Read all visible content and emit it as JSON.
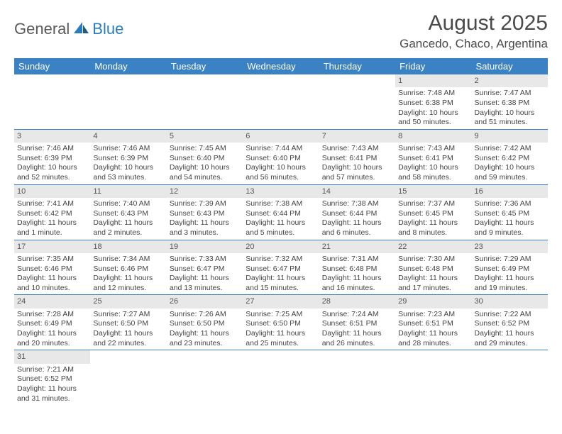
{
  "logo": {
    "part1": "General",
    "part2": "Blue"
  },
  "title": "August 2025",
  "location": "Gancedo, Chaco, Argentina",
  "headers": [
    "Sunday",
    "Monday",
    "Tuesday",
    "Wednesday",
    "Thursday",
    "Friday",
    "Saturday"
  ],
  "colors": {
    "headerBg": "#3b82c4",
    "dayNumBg": "#e8e8e8",
    "border": "#3b82c4",
    "logoBlue": "#2b7bbf"
  },
  "weeks": [
    [
      null,
      null,
      null,
      null,
      null,
      {
        "n": "1",
        "sr": "7:48 AM",
        "ss": "6:38 PM",
        "dl": "10 hours and 50 minutes."
      },
      {
        "n": "2",
        "sr": "7:47 AM",
        "ss": "6:38 PM",
        "dl": "10 hours and 51 minutes."
      }
    ],
    [
      {
        "n": "3",
        "sr": "7:46 AM",
        "ss": "6:39 PM",
        "dl": "10 hours and 52 minutes."
      },
      {
        "n": "4",
        "sr": "7:46 AM",
        "ss": "6:39 PM",
        "dl": "10 hours and 53 minutes."
      },
      {
        "n": "5",
        "sr": "7:45 AM",
        "ss": "6:40 PM",
        "dl": "10 hours and 54 minutes."
      },
      {
        "n": "6",
        "sr": "7:44 AM",
        "ss": "6:40 PM",
        "dl": "10 hours and 56 minutes."
      },
      {
        "n": "7",
        "sr": "7:43 AM",
        "ss": "6:41 PM",
        "dl": "10 hours and 57 minutes."
      },
      {
        "n": "8",
        "sr": "7:43 AM",
        "ss": "6:41 PM",
        "dl": "10 hours and 58 minutes."
      },
      {
        "n": "9",
        "sr": "7:42 AM",
        "ss": "6:42 PM",
        "dl": "10 hours and 59 minutes."
      }
    ],
    [
      {
        "n": "10",
        "sr": "7:41 AM",
        "ss": "6:42 PM",
        "dl": "11 hours and 1 minute."
      },
      {
        "n": "11",
        "sr": "7:40 AM",
        "ss": "6:43 PM",
        "dl": "11 hours and 2 minutes."
      },
      {
        "n": "12",
        "sr": "7:39 AM",
        "ss": "6:43 PM",
        "dl": "11 hours and 3 minutes."
      },
      {
        "n": "13",
        "sr": "7:38 AM",
        "ss": "6:44 PM",
        "dl": "11 hours and 5 minutes."
      },
      {
        "n": "14",
        "sr": "7:38 AM",
        "ss": "6:44 PM",
        "dl": "11 hours and 6 minutes."
      },
      {
        "n": "15",
        "sr": "7:37 AM",
        "ss": "6:45 PM",
        "dl": "11 hours and 8 minutes."
      },
      {
        "n": "16",
        "sr": "7:36 AM",
        "ss": "6:45 PM",
        "dl": "11 hours and 9 minutes."
      }
    ],
    [
      {
        "n": "17",
        "sr": "7:35 AM",
        "ss": "6:46 PM",
        "dl": "11 hours and 10 minutes."
      },
      {
        "n": "18",
        "sr": "7:34 AM",
        "ss": "6:46 PM",
        "dl": "11 hours and 12 minutes."
      },
      {
        "n": "19",
        "sr": "7:33 AM",
        "ss": "6:47 PM",
        "dl": "11 hours and 13 minutes."
      },
      {
        "n": "20",
        "sr": "7:32 AM",
        "ss": "6:47 PM",
        "dl": "11 hours and 15 minutes."
      },
      {
        "n": "21",
        "sr": "7:31 AM",
        "ss": "6:48 PM",
        "dl": "11 hours and 16 minutes."
      },
      {
        "n": "22",
        "sr": "7:30 AM",
        "ss": "6:48 PM",
        "dl": "11 hours and 17 minutes."
      },
      {
        "n": "23",
        "sr": "7:29 AM",
        "ss": "6:49 PM",
        "dl": "11 hours and 19 minutes."
      }
    ],
    [
      {
        "n": "24",
        "sr": "7:28 AM",
        "ss": "6:49 PM",
        "dl": "11 hours and 20 minutes."
      },
      {
        "n": "25",
        "sr": "7:27 AM",
        "ss": "6:50 PM",
        "dl": "11 hours and 22 minutes."
      },
      {
        "n": "26",
        "sr": "7:26 AM",
        "ss": "6:50 PM",
        "dl": "11 hours and 23 minutes."
      },
      {
        "n": "27",
        "sr": "7:25 AM",
        "ss": "6:50 PM",
        "dl": "11 hours and 25 minutes."
      },
      {
        "n": "28",
        "sr": "7:24 AM",
        "ss": "6:51 PM",
        "dl": "11 hours and 26 minutes."
      },
      {
        "n": "29",
        "sr": "7:23 AM",
        "ss": "6:51 PM",
        "dl": "11 hours and 28 minutes."
      },
      {
        "n": "30",
        "sr": "7:22 AM",
        "ss": "6:52 PM",
        "dl": "11 hours and 29 minutes."
      }
    ],
    [
      {
        "n": "31",
        "sr": "7:21 AM",
        "ss": "6:52 PM",
        "dl": "11 hours and 31 minutes."
      },
      null,
      null,
      null,
      null,
      null,
      null
    ]
  ]
}
